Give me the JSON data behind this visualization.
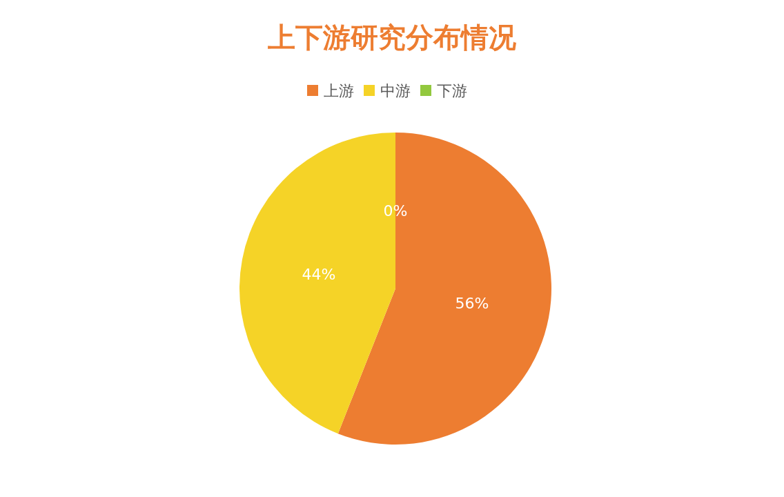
{
  "chart_data": {
    "type": "pie",
    "title": "上下游研究分布情况",
    "categories": [
      "上游",
      "中游",
      "下游"
    ],
    "values": [
      56,
      44,
      0
    ],
    "value_labels": [
      "56%",
      "44%",
      "0%"
    ],
    "colors": [
      "#ed7d31",
      "#f5d327",
      "#92c83e"
    ],
    "legend": "top"
  }
}
